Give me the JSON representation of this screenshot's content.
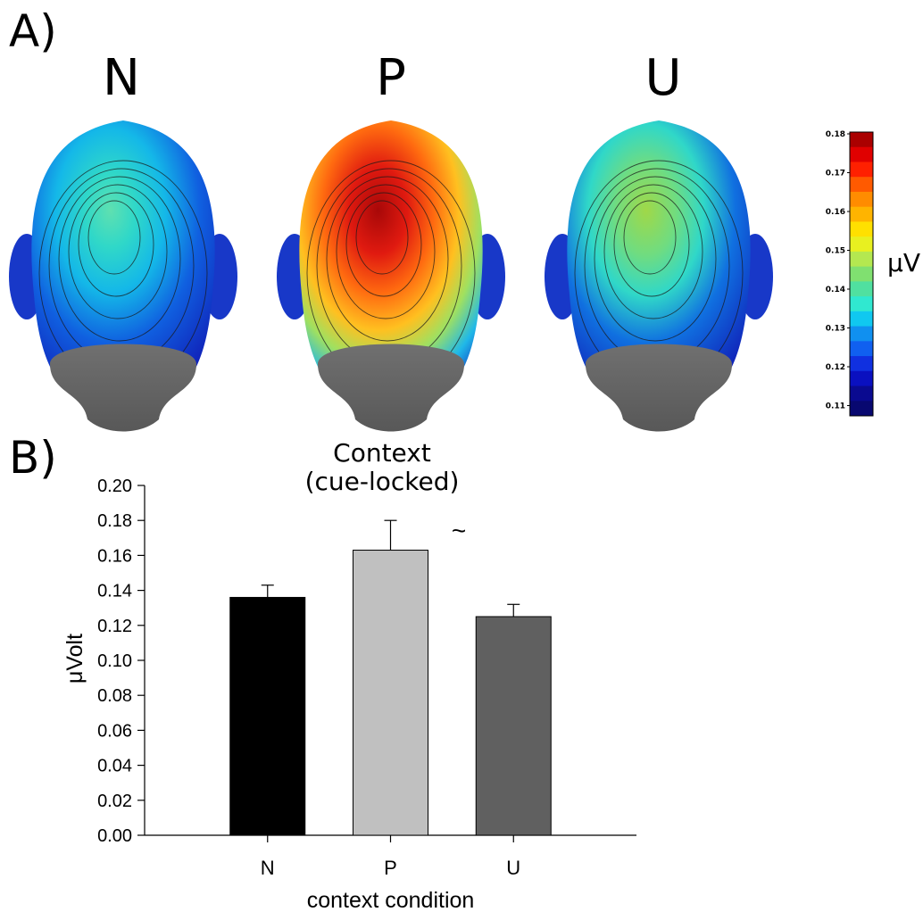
{
  "panel_a": {
    "label": "A)",
    "heads": [
      {
        "title": "N",
        "peak_color": "#4fdcae"
      },
      {
        "title": "P",
        "peak_color": "#b51010"
      },
      {
        "title": "U",
        "peak_color": "#9dd64b"
      }
    ],
    "colorbar": {
      "unit": "μV",
      "ticks": [
        "0.18",
        "0.17",
        "0.16",
        "0.15",
        "0.14",
        "0.13",
        "0.12",
        "0.11"
      ],
      "colors": [
        "#aa0000",
        "#e00000",
        "#ff2000",
        "#ff5a00",
        "#ff8c00",
        "#ffb400",
        "#ffe000",
        "#e8f020",
        "#b4e850",
        "#80e070",
        "#50e0a0",
        "#30e8d0",
        "#10c8f0",
        "#1090f0",
        "#1060f0",
        "#1030e0",
        "#0a10c0",
        "#0a0a90",
        "#080870"
      ]
    }
  },
  "panel_b": {
    "label": "B)",
    "annotation": "~"
  },
  "chart_data": {
    "type": "bar",
    "title": "Context\n(cue-locked)",
    "xlabel": "context condition",
    "ylabel": "μVolt",
    "categories": [
      "N",
      "P",
      "U"
    ],
    "values": [
      0.136,
      0.163,
      0.125
    ],
    "errors": [
      0.007,
      0.017,
      0.007
    ],
    "bar_colors": [
      "#000000",
      "#c0c0c0",
      "#606060"
    ],
    "ylim": [
      0.0,
      0.2
    ],
    "yticks": [
      "0.00",
      "0.02",
      "0.04",
      "0.06",
      "0.08",
      "0.10",
      "0.12",
      "0.14",
      "0.16",
      "0.18",
      "0.20"
    ],
    "grid": false
  }
}
